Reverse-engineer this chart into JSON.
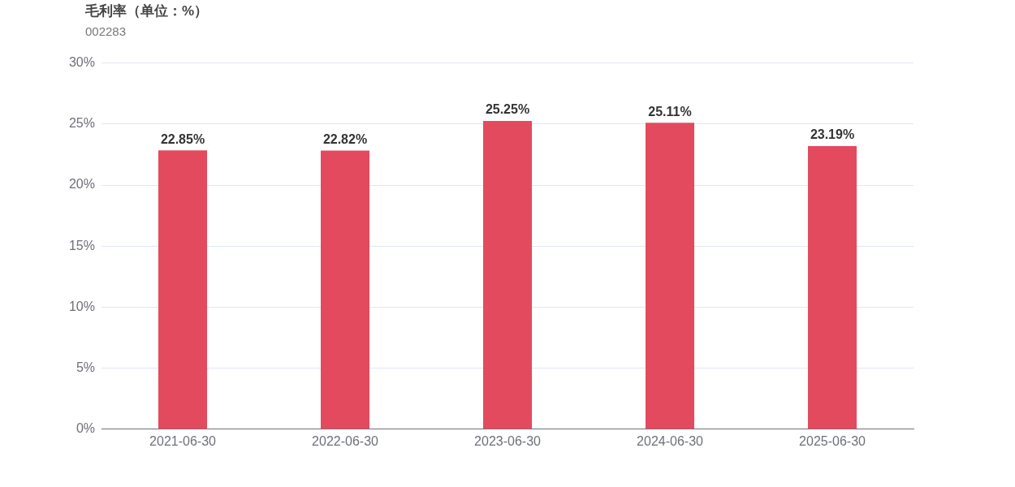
{
  "chart_data": {
    "type": "bar",
    "title": "毛利率（单位：%）",
    "subtitle": "002283",
    "categories": [
      "2021-06-30",
      "2022-06-30",
      "2023-06-30",
      "2024-06-30",
      "2025-06-30"
    ],
    "values": [
      22.85,
      22.82,
      25.25,
      25.11,
      23.19
    ],
    "color": "#e34a5e",
    "value_labels": [
      "22.85%",
      "22.82%",
      "25.25%",
      "25.11%",
      "23.19%"
    ],
    "ylim": [
      0,
      30
    ],
    "yticks": [
      {
        "value": 0,
        "label": "0%"
      },
      {
        "value": 5,
        "label": "5%"
      },
      {
        "value": 10,
        "label": "10%"
      },
      {
        "value": 15,
        "label": "15%"
      },
      {
        "value": 20,
        "label": "20%"
      },
      {
        "value": 25,
        "label": "25%"
      },
      {
        "value": 30,
        "label": "30%"
      }
    ],
    "grid": "y",
    "legend": false
  }
}
